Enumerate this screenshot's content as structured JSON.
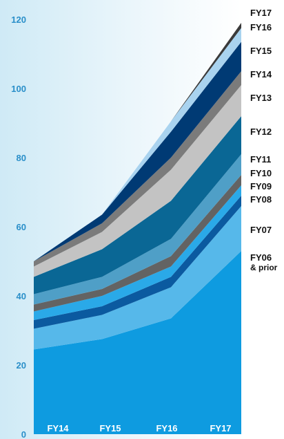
{
  "chart_data": {
    "type": "area",
    "stacked": true,
    "categories": [
      "FY14",
      "FY15",
      "FY16",
      "FY17"
    ],
    "ylim": [
      0,
      120
    ],
    "yticks": [
      "0",
      "20",
      "40",
      "60",
      "80",
      "100",
      "120"
    ],
    "grid": false,
    "legend_position": "right",
    "series": [
      {
        "name": "FY06",
        "name_line2": "& prior",
        "color": "#0e9be0",
        "values": [
          24.5,
          27.5,
          33.5,
          53.0
        ]
      },
      {
        "name": "FY07",
        "color": "#56b8ea",
        "values": [
          6.0,
          7.0,
          9.0,
          13.0
        ]
      },
      {
        "name": "FY08",
        "color": "#0b5aa0",
        "values": [
          2.5,
          2.5,
          3.0,
          3.0
        ]
      },
      {
        "name": "FY09",
        "color": "#2aa9e8",
        "values": [
          2.5,
          3.0,
          3.0,
          3.0
        ]
      },
      {
        "name": "FY10",
        "color": "#636363",
        "values": [
          2.0,
          2.0,
          3.0,
          3.0
        ]
      },
      {
        "name": "FY11",
        "color": "#4f9fc7",
        "values": [
          3.0,
          3.5,
          5.0,
          6.0
        ]
      },
      {
        "name": "FY12",
        "color": "#0a6795",
        "values": [
          5.0,
          8.0,
          11.0,
          11.0
        ]
      },
      {
        "name": "FY13",
        "color": "#c3c3c3",
        "values": [
          3.0,
          5.0,
          9.0,
          9.0
        ]
      },
      {
        "name": "FY14",
        "color": "#7b7b7b",
        "values": [
          1.5,
          2.5,
          3.5,
          4.0
        ]
      },
      {
        "name": "FY15",
        "color": "#003a74",
        "values": [
          0,
          2.5,
          7.5,
          8.5
        ]
      },
      {
        "name": "FY16",
        "color": "#a9d3ef",
        "values": [
          0,
          0,
          3.0,
          4.0
        ]
      },
      {
        "name": "FY17",
        "color": "#3a3a3a",
        "values": [
          0,
          0,
          0,
          1.5
        ]
      }
    ]
  }
}
